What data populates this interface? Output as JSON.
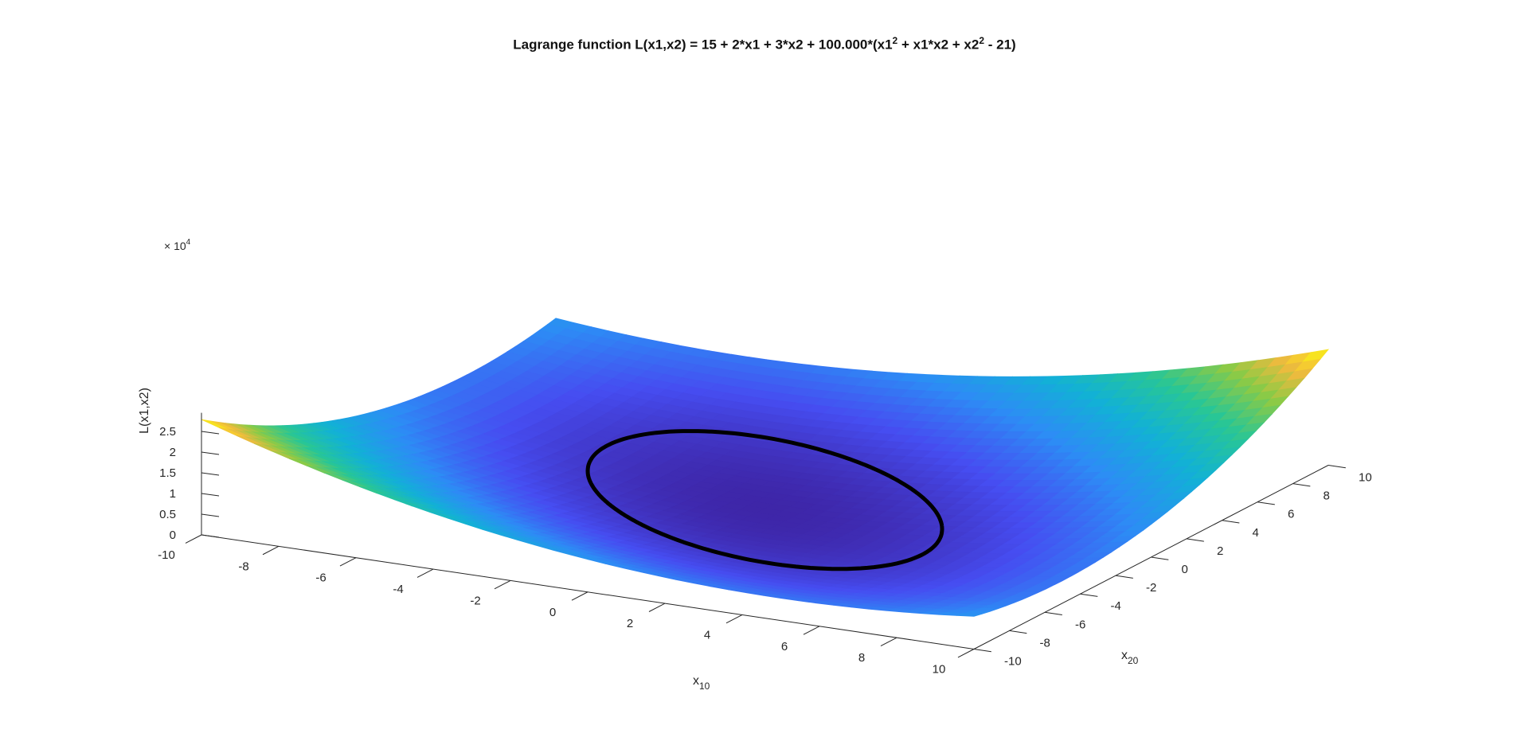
{
  "chart_data": {
    "type": "surface",
    "title_parts": {
      "prefix": "Lagrange function L(x1,x2) = 15 + 2*x1 + 3*x2 + 100.000*(x1",
      "exp1": "2",
      "mid": " + x1*x2 + x2",
      "exp2": "2",
      "suffix": " - 21)"
    },
    "function": {
      "constant": 15,
      "c_x1": 2,
      "c_x2": 3,
      "multiplier": 100,
      "constraint_rhs": 21
    },
    "x1": {
      "label_main": "x",
      "label_sub": "10",
      "range": [
        -10,
        10
      ],
      "ticks": [
        "-10",
        "-8",
        "-6",
        "-4",
        "-2",
        "0",
        "2",
        "4",
        "6",
        "8",
        "10"
      ]
    },
    "x2": {
      "label_main": "x",
      "label_sub": "20",
      "range": [
        -10,
        10
      ],
      "ticks": [
        "-10",
        "-8",
        "-6",
        "-4",
        "-2",
        "0",
        "2",
        "4",
        "6",
        "8",
        "10"
      ]
    },
    "z": {
      "label": "L(x1,x2)",
      "multiplier_text": "× 10",
      "multiplier_exp": "4",
      "ticks": [
        0,
        0.5,
        1,
        1.5,
        2,
        2.5
      ],
      "tick_labels": [
        "0",
        "0.5",
        "1",
        "1.5",
        "2",
        "2.5"
      ]
    },
    "constraint_curve": {
      "equation": "x1^2 + x1*x2 + x2^2 = 21",
      "color": "#000000"
    },
    "colormap": "parula",
    "grid": false
  }
}
